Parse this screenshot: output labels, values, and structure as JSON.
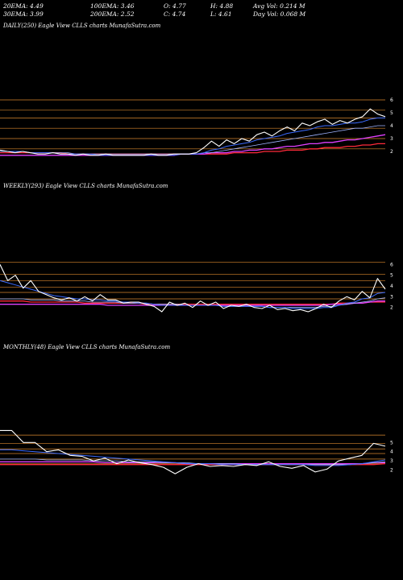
{
  "header": {
    "row1": [
      {
        "key": "ema20",
        "text": "20EMA: 4.49"
      },
      {
        "key": "ema100",
        "text": "100EMA: 3.46"
      },
      {
        "key": "open",
        "text": "O: 4.77"
      },
      {
        "key": "high",
        "text": "H: 4.88"
      },
      {
        "key": "avgvol",
        "text": "Avg Vol: 0.214  M"
      }
    ],
    "row2": [
      {
        "key": "ema30",
        "text": "30EMA: 3.99"
      },
      {
        "key": "ema200",
        "text": "200EMA: 2.52"
      },
      {
        "key": "close",
        "text": "C: 4.74"
      },
      {
        "key": "low",
        "text": "L: 4.61"
      },
      {
        "key": "dayvol",
        "text": "Day Vol: 0.068  M"
      }
    ]
  },
  "panels": [
    {
      "title": "DAILY(250) Eagle   View  CLLS charts MunafaSutra.com"
    },
    {
      "title": "WEEKLY(293) Eagle   View  CLLS charts MunafaSutra.com"
    },
    {
      "title": "MONTHLY(48) Eagle   View  CLLS charts MunafaSutra.com"
    }
  ],
  "colors": {
    "background": "#000000",
    "price": "#ffffff",
    "levels": "#d8872e",
    "ema_blue": "#3b6bff",
    "ema_red": "#ff2a3a",
    "ema_magenta": "#e040ff"
  },
  "chart_data": [
    {
      "type": "line",
      "title": "DAILY(250) Eagle   View  CLLS charts MunafaSutra.com",
      "ylim": [
        1.5,
        6.5
      ],
      "y_ticks": [
        2,
        3,
        4,
        5,
        6
      ],
      "levels": [
        6.0,
        5.2,
        4.6,
        3.8,
        3.0,
        2.2
      ],
      "series": [
        {
          "role": "price",
          "values": [
            2.1,
            2.0,
            1.9,
            2.0,
            1.9,
            1.8,
            1.8,
            1.9,
            1.8,
            1.8,
            1.7,
            1.8,
            1.7,
            1.7,
            1.8,
            1.7,
            1.7,
            1.7,
            1.7,
            1.7,
            1.8,
            1.7,
            1.7,
            1.8,
            1.8,
            1.8,
            1.9,
            2.3,
            2.8,
            2.4,
            2.9,
            2.6,
            3.0,
            2.8,
            3.3,
            3.5,
            3.2,
            3.6,
            3.9,
            3.6,
            4.2,
            4.0,
            4.3,
            4.5,
            4.1,
            4.4,
            4.2,
            4.5,
            4.7,
            5.3,
            4.9,
            4.7
          ]
        },
        {
          "role": "ema-fast",
          "values": [
            2.1,
            2.0,
            2.0,
            2.0,
            1.9,
            1.9,
            1.9,
            1.9,
            1.8,
            1.8,
            1.8,
            1.8,
            1.8,
            1.7,
            1.7,
            1.7,
            1.7,
            1.7,
            1.7,
            1.7,
            1.7,
            1.7,
            1.7,
            1.7,
            1.8,
            1.8,
            1.8,
            1.9,
            2.1,
            2.2,
            2.4,
            2.5,
            2.6,
            2.7,
            2.9,
            3.0,
            3.1,
            3.2,
            3.4,
            3.5,
            3.6,
            3.7,
            3.9,
            4.0,
            4.0,
            4.1,
            4.2,
            4.2,
            4.3,
            4.5,
            4.6,
            4.6
          ]
        },
        {
          "role": "ema-slow",
          "values": [
            2.0,
            2.0,
            2.0,
            2.0,
            1.9,
            1.9,
            1.9,
            1.9,
            1.9,
            1.9,
            1.8,
            1.8,
            1.8,
            1.8,
            1.8,
            1.8,
            1.8,
            1.8,
            1.8,
            1.8,
            1.8,
            1.8,
            1.8,
            1.8,
            1.8,
            1.8,
            1.8,
            1.9,
            1.9,
            2.0,
            2.1,
            2.2,
            2.3,
            2.4,
            2.5,
            2.6,
            2.7,
            2.8,
            2.9,
            3.0,
            3.1,
            3.2,
            3.3,
            3.4,
            3.5,
            3.6,
            3.7,
            3.8,
            3.8,
            3.9,
            4.0,
            4.0
          ]
        },
        {
          "role": "ema-long",
          "values": [
            1.7,
            1.7,
            1.7,
            1.7,
            1.7,
            1.7,
            1.7,
            1.7,
            1.7,
            1.7,
            1.7,
            1.7,
            1.7,
            1.7,
            1.7,
            1.7,
            1.7,
            1.7,
            1.7,
            1.7,
            1.7,
            1.7,
            1.7,
            1.7,
            1.8,
            1.8,
            1.8,
            1.8,
            1.9,
            1.9,
            1.9,
            2.0,
            2.0,
            2.1,
            2.1,
            2.2,
            2.2,
            2.3,
            2.4,
            2.4,
            2.5,
            2.6,
            2.6,
            2.7,
            2.7,
            2.8,
            2.9,
            2.9,
            3.0,
            3.1,
            3.2,
            3.3
          ]
        },
        {
          "role": "ema-longest",
          "values": [
            1.9,
            1.9,
            1.9,
            1.9,
            1.9,
            1.9,
            1.9,
            1.9,
            1.9,
            1.8,
            1.8,
            1.8,
            1.8,
            1.8,
            1.8,
            1.8,
            1.8,
            1.8,
            1.8,
            1.8,
            1.8,
            1.8,
            1.8,
            1.8,
            1.8,
            1.8,
            1.8,
            1.8,
            1.8,
            1.8,
            1.8,
            1.9,
            1.9,
            1.9,
            1.9,
            2.0,
            2.0,
            2.0,
            2.1,
            2.1,
            2.1,
            2.2,
            2.2,
            2.3,
            2.3,
            2.3,
            2.4,
            2.4,
            2.5,
            2.5,
            2.6,
            2.6
          ]
        }
      ]
    },
    {
      "type": "line",
      "title": "WEEKLY(293) Eagle   View  CLLS charts MunafaSutra.com",
      "ylim": [
        1.0,
        7.0
      ],
      "y_ticks": [
        2,
        3,
        4,
        5,
        6
      ],
      "levels": [
        6.2,
        5.1,
        4.5,
        3.9,
        3.4,
        2.8
      ],
      "series": [
        {
          "role": "price",
          "values": [
            6.0,
            4.5,
            5.0,
            3.8,
            4.5,
            3.5,
            3.2,
            2.9,
            2.7,
            2.9,
            2.6,
            3.0,
            2.6,
            3.2,
            2.7,
            2.7,
            2.4,
            2.5,
            2.5,
            2.3,
            2.1,
            1.6,
            2.5,
            2.2,
            2.4,
            2.0,
            2.6,
            2.2,
            2.5,
            1.9,
            2.2,
            2.1,
            2.3,
            2.0,
            1.9,
            2.2,
            1.8,
            1.9,
            1.7,
            1.8,
            1.6,
            1.9,
            2.3,
            2.0,
            2.6,
            3.0,
            2.7,
            3.5,
            2.9,
            4.7,
            3.7
          ]
        },
        {
          "role": "ema-fast",
          "values": [
            4.5,
            4.3,
            4.1,
            3.9,
            3.7,
            3.5,
            3.3,
            3.1,
            3.0,
            2.9,
            2.8,
            2.8,
            2.7,
            2.7,
            2.6,
            2.6,
            2.5,
            2.5,
            2.4,
            2.4,
            2.3,
            2.2,
            2.2,
            2.2,
            2.2,
            2.2,
            2.2,
            2.2,
            2.2,
            2.1,
            2.1,
            2.1,
            2.1,
            2.1,
            2.1,
            2.0,
            2.0,
            2.0,
            1.9,
            1.9,
            1.9,
            1.9,
            2.0,
            2.0,
            2.2,
            2.4,
            2.5,
            2.8,
            2.9,
            3.3,
            3.4
          ]
        },
        {
          "role": "ema-slow",
          "values": [
            2.8,
            2.8,
            2.8,
            2.8,
            2.7,
            2.7,
            2.7,
            2.7,
            2.6,
            2.6,
            2.6,
            2.6,
            2.5,
            2.5,
            2.5,
            2.5,
            2.4,
            2.4,
            2.4,
            2.4,
            2.3,
            2.3,
            2.3,
            2.3,
            2.2,
            2.2,
            2.2,
            2.2,
            2.2,
            2.1,
            2.1,
            2.1,
            2.1,
            2.1,
            2.1,
            2.0,
            2.0,
            2.0,
            2.0,
            2.0,
            2.0,
            2.0,
            2.1,
            2.1,
            2.2,
            2.3,
            2.4,
            2.5,
            2.6,
            2.8,
            2.9
          ]
        },
        {
          "role": "ema-long",
          "values": [
            2.3,
            2.3,
            2.3,
            2.3,
            2.3,
            2.3,
            2.3,
            2.3,
            2.3,
            2.3,
            2.3,
            2.3,
            2.3,
            2.3,
            2.2,
            2.2,
            2.2,
            2.2,
            2.2,
            2.2,
            2.2,
            2.2,
            2.2,
            2.2,
            2.2,
            2.2,
            2.2,
            2.2,
            2.2,
            2.2,
            2.2,
            2.2,
            2.2,
            2.2,
            2.2,
            2.2,
            2.2,
            2.2,
            2.2,
            2.2,
            2.2,
            2.2,
            2.2,
            2.3,
            2.3,
            2.3,
            2.4,
            2.4,
            2.5,
            2.6,
            2.6
          ]
        },
        {
          "role": "ema-longest",
          "values": [
            2.6,
            2.6,
            2.6,
            2.6,
            2.5,
            2.5,
            2.5,
            2.5,
            2.5,
            2.5,
            2.5,
            2.4,
            2.4,
            2.4,
            2.4,
            2.4,
            2.4,
            2.4,
            2.4,
            2.3,
            2.3,
            2.3,
            2.3,
            2.3,
            2.3,
            2.3,
            2.3,
            2.3,
            2.3,
            2.3,
            2.3,
            2.3,
            2.3,
            2.3,
            2.3,
            2.3,
            2.3,
            2.3,
            2.3,
            2.3,
            2.3,
            2.3,
            2.3,
            2.3,
            2.4,
            2.4,
            2.4,
            2.4,
            2.5,
            2.5,
            2.5
          ]
        }
      ]
    },
    {
      "type": "line",
      "title": "MONTHLY(48) Eagle   View  CLLS charts MunafaSutra.com",
      "ylim": [
        1.0,
        8.0
      ],
      "y_ticks": [
        2,
        3,
        4,
        5
      ],
      "levels": [
        5.8,
        4.9,
        4.3,
        3.8,
        3.2,
        2.7
      ],
      "series": [
        {
          "role": "price",
          "values": [
            6.3,
            6.3,
            5.0,
            5.0,
            4.0,
            4.2,
            3.6,
            3.5,
            3.0,
            3.3,
            2.7,
            3.1,
            2.8,
            2.6,
            2.3,
            1.6,
            2.3,
            2.7,
            2.4,
            2.5,
            2.4,
            2.6,
            2.5,
            2.9,
            2.4,
            2.2,
            2.5,
            1.8,
            2.1,
            3.0,
            3.3,
            3.6,
            4.9,
            4.6
          ]
        },
        {
          "role": "ema-fast",
          "values": [
            4.2,
            4.2,
            4.1,
            4.0,
            3.9,
            3.8,
            3.7,
            3.6,
            3.5,
            3.4,
            3.3,
            3.2,
            3.1,
            3.0,
            2.9,
            2.8,
            2.7,
            2.7,
            2.7,
            2.6,
            2.6,
            2.6,
            2.6,
            2.6,
            2.6,
            2.6,
            2.6,
            2.5,
            2.5,
            2.5,
            2.6,
            2.7,
            2.9,
            3.1
          ]
        },
        {
          "role": "ema-slow",
          "values": [
            3.2,
            3.2,
            3.2,
            3.2,
            3.1,
            3.1,
            3.1,
            3.1,
            3.0,
            3.0,
            3.0,
            2.9,
            2.9,
            2.9,
            2.8,
            2.8,
            2.8,
            2.7,
            2.7,
            2.7,
            2.7,
            2.6,
            2.6,
            2.6,
            2.6,
            2.6,
            2.6,
            2.6,
            2.6,
            2.6,
            2.6,
            2.7,
            2.8,
            2.9
          ]
        },
        {
          "role": "ema-long",
          "values": [
            2.9,
            2.9,
            2.9,
            2.9,
            2.9,
            2.9,
            2.9,
            2.9,
            2.9,
            2.8,
            2.8,
            2.8,
            2.8,
            2.8,
            2.8,
            2.8,
            2.7,
            2.7,
            2.7,
            2.7,
            2.7,
            2.7,
            2.7,
            2.7,
            2.7,
            2.7,
            2.7,
            2.7,
            2.7,
            2.7,
            2.7,
            2.7,
            2.8,
            2.8
          ]
        },
        {
          "role": "ema-longest",
          "values": [
            2.6,
            2.6,
            2.6,
            2.6,
            2.6,
            2.6,
            2.6,
            2.6,
            2.6,
            2.6,
            2.6,
            2.6,
            2.6,
            2.6,
            2.6,
            2.6,
            2.6,
            2.6,
            2.6,
            2.6,
            2.6,
            2.6,
            2.6,
            2.6,
            2.6,
            2.6,
            2.6,
            2.6,
            2.6,
            2.6,
            2.6,
            2.6,
            2.6,
            2.7
          ]
        }
      ]
    }
  ]
}
